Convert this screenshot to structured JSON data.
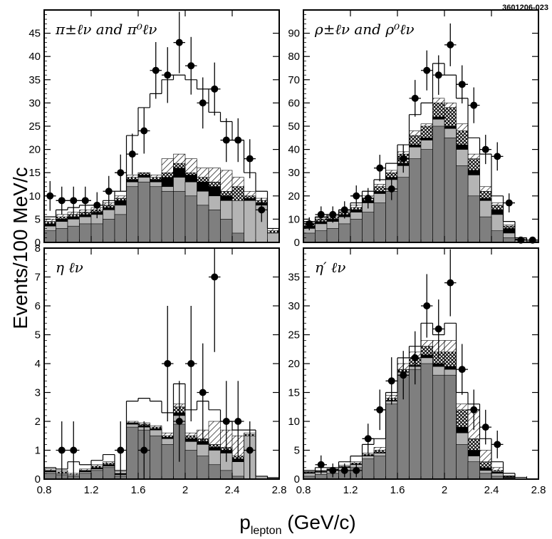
{
  "figure_id": "3601206-023",
  "y_axis_label": "Events/100 MeV/c",
  "x_axis_label_main": "p",
  "x_axis_label_sub": "lepton",
  "x_axis_label_unit": " (GeV/c)",
  "x_ticks": [
    "0.8",
    "1.2",
    "1.6",
    "2",
    "2.4",
    "2.8"
  ],
  "colors": {
    "data": "#000000",
    "dark_fill": "#7f7f7f",
    "light_fill": "#b4b4b4",
    "hatch": "#000000"
  },
  "chart_data": [
    {
      "type": "bar",
      "panel": "top-left",
      "title": "π±ℓν and π⁰ℓν",
      "xlabel": "p_lepton (GeV/c)",
      "ylabel": "Events/100 MeV/c",
      "xlim": [
        0.8,
        2.8
      ],
      "ylim": [
        0,
        50
      ],
      "y_ticks": [
        0,
        5,
        10,
        15,
        20,
        25,
        30,
        35,
        40,
        45
      ],
      "bins": [
        0.8,
        0.9,
        1.0,
        1.1,
        1.2,
        1.3,
        1.4,
        1.5,
        1.6,
        1.7,
        1.8,
        1.9,
        2.0,
        2.1,
        2.2,
        2.3,
        2.4,
        2.5,
        2.6,
        2.7,
        2.8
      ],
      "dark_gray": [
        2.5,
        3,
        3.5,
        4,
        4,
        5,
        6,
        12,
        13,
        12,
        11,
        11,
        10,
        8,
        7,
        5,
        2,
        0,
        0,
        0
      ],
      "light_gray": [
        3.5,
        4.5,
        5,
        5.5,
        6,
        7,
        8,
        13,
        14,
        13,
        12,
        14,
        13,
        11,
        10,
        9,
        9,
        9,
        8,
        2
      ],
      "black": [
        4,
        5,
        5.5,
        6,
        6.5,
        7.5,
        9,
        13.5,
        14.5,
        13.5,
        14,
        16,
        14.5,
        13,
        12,
        10,
        8,
        9.5,
        8.5,
        2
      ],
      "crosshatch": [
        4.5,
        5.5,
        6,
        6.5,
        7,
        8,
        9.5,
        14,
        15,
        14,
        15,
        17,
        15,
        14,
        13,
        11,
        12,
        10,
        9,
        2.5
      ],
      "hatched": [
        5,
        6,
        6.5,
        7,
        7.5,
        8.5,
        10,
        14.5,
        15,
        14.5,
        18,
        19,
        18,
        16,
        16,
        15.5,
        14,
        11,
        9.5,
        3
      ],
      "total": [
        5.5,
        7,
        7.5,
        8,
        8,
        9,
        11,
        23,
        29,
        32,
        35,
        36,
        35,
        33,
        28,
        26,
        22,
        15,
        11,
        3
      ],
      "data_x": [
        0.85,
        0.95,
        1.05,
        1.15,
        1.25,
        1.35,
        1.45,
        1.55,
        1.65,
        1.75,
        1.85,
        1.95,
        2.05,
        2.15,
        2.25,
        2.35,
        2.45,
        2.55,
        2.65
      ],
      "data_y": [
        10,
        9,
        9,
        9,
        8,
        11,
        15,
        19,
        24,
        37,
        36,
        43,
        38,
        30,
        33,
        22,
        22,
        18,
        7
      ],
      "data_err": [
        3.2,
        3,
        3,
        3,
        2.8,
        3.3,
        3.9,
        4.4,
        4.9,
        6.1,
        6,
        6.6,
        6.2,
        5.5,
        5.7,
        4.7,
        4.7,
        4.2,
        2.6
      ]
    },
    {
      "type": "bar",
      "panel": "top-right",
      "title": "ρ±ℓν and ρ⁰ℓν",
      "xlabel": "p_lepton (GeV/c)",
      "ylabel": "Events/100 MeV/c",
      "xlim": [
        0.8,
        2.8
      ],
      "ylim": [
        0,
        100
      ],
      "y_ticks": [
        0,
        10,
        20,
        30,
        40,
        50,
        60,
        70,
        80,
        90
      ],
      "bins": [
        0.8,
        0.9,
        1.0,
        1.1,
        1.2,
        1.3,
        1.4,
        1.5,
        1.6,
        1.7,
        1.8,
        1.9,
        2.0,
        2.1,
        2.2,
        2.3,
        2.4,
        2.5,
        2.6,
        2.7,
        2.8
      ],
      "dark_gray": [
        4,
        5,
        6,
        8,
        10,
        13,
        17,
        22,
        28,
        36,
        40,
        50,
        45,
        33,
        20,
        11,
        5,
        2,
        0,
        0
      ],
      "light_gray": [
        6,
        8,
        9,
        11,
        13,
        17,
        21,
        27,
        33,
        41,
        44,
        53,
        49,
        40,
        29,
        18,
        12,
        4,
        1,
        0
      ],
      "black": [
        7,
        9,
        10,
        12,
        14,
        18,
        22,
        28,
        34,
        42,
        45,
        54,
        50,
        42,
        31,
        19,
        14,
        6,
        1,
        0
      ],
      "crosshatch": [
        8,
        10,
        11,
        13,
        15,
        19,
        24,
        30,
        38,
        46,
        50,
        60,
        58,
        48,
        36,
        22,
        16,
        7,
        1.5,
        0
      ],
      "hatched": [
        8.5,
        10.5,
        11.5,
        13.5,
        16,
        20,
        25,
        31,
        39,
        48,
        51,
        62,
        60,
        51,
        38,
        24,
        17,
        7.5,
        1.5,
        0.5
      ],
      "total": [
        9,
        11,
        12,
        14,
        17,
        22,
        27,
        34,
        42,
        55,
        60,
        77,
        72,
        62,
        45,
        38,
        20,
        9,
        2,
        1
      ],
      "data_x": [
        0.85,
        0.95,
        1.05,
        1.15,
        1.25,
        1.35,
        1.45,
        1.55,
        1.65,
        1.75,
        1.85,
        1.95,
        2.05,
        2.15,
        2.25,
        2.35,
        2.45,
        2.55,
        2.65,
        2.75
      ],
      "data_y": [
        8,
        12,
        12,
        14,
        20,
        19,
        32,
        23,
        36,
        62,
        74,
        72,
        85,
        68,
        59,
        40,
        37,
        17,
        1,
        1
      ],
      "data_err": [
        2.8,
        3.5,
        3.5,
        3.7,
        4.5,
        4.4,
        5.7,
        4.8,
        6,
        7.9,
        8.6,
        8.5,
        9.2,
        8.2,
        7.7,
        6.3,
        6.1,
        4.1,
        1,
        1
      ]
    },
    {
      "type": "bar",
      "panel": "bottom-left",
      "title": "η ℓν",
      "xlabel": "p_lepton (GeV/c)",
      "ylabel": "Events/100 MeV/c",
      "xlim": [
        0.8,
        2.8
      ],
      "ylim": [
        0,
        8
      ],
      "y_ticks": [
        0,
        1,
        2,
        3,
        4,
        5,
        6,
        7,
        8
      ],
      "bins": [
        0.8,
        0.9,
        1.0,
        1.1,
        1.2,
        1.3,
        1.4,
        1.5,
        1.6,
        1.7,
        1.8,
        1.9,
        2.0,
        2.1,
        2.2,
        2.3,
        2.4,
        2.5,
        2.6,
        2.7,
        2.8
      ],
      "dark_gray": [
        0.2,
        0.15,
        0.1,
        0.2,
        0.3,
        0.4,
        0.1,
        1.8,
        1.7,
        1.5,
        1.2,
        1.9,
        1.0,
        0.8,
        0.5,
        0.3,
        0.1,
        0,
        0,
        0
      ],
      "light_gray": [
        0.25,
        0.2,
        0.15,
        0.25,
        0.35,
        0.45,
        0.15,
        1.9,
        1.8,
        1.7,
        1.4,
        2.2,
        1.3,
        1.2,
        1.0,
        0.9,
        0.6,
        1.5,
        0.1,
        0.05
      ],
      "black": [
        0.3,
        0.2,
        0.15,
        0.3,
        0.4,
        0.5,
        0.2,
        1.95,
        1.85,
        1.75,
        1.45,
        2.3,
        1.4,
        1.3,
        1.1,
        1.0,
        0.7,
        1.5,
        0.1,
        0.05
      ],
      "crosshatch": [
        0.3,
        0.25,
        0.15,
        0.3,
        0.45,
        0.55,
        0.2,
        1.95,
        1.9,
        1.8,
        1.5,
        2.5,
        1.5,
        1.4,
        1.2,
        1.1,
        0.8,
        1.55,
        0.1,
        0.05
      ],
      "hatched": [
        0.35,
        0.3,
        0.2,
        0.35,
        0.5,
        0.6,
        0.25,
        2.0,
        1.95,
        1.85,
        1.6,
        2.6,
        1.6,
        1.7,
        2.0,
        1.7,
        1.5,
        1.6,
        0.1,
        0.05
      ],
      "total": [
        0.4,
        0.35,
        0.6,
        0.5,
        0.65,
        0.85,
        0.3,
        2.7,
        2.8,
        2.7,
        2.3,
        3.3,
        2.4,
        2.7,
        2.4,
        2.0,
        1.7,
        1.7,
        0.1,
        0.05
      ],
      "data_x": [
        0.95,
        1.05,
        1.45,
        1.65,
        1.85,
        1.95,
        2.05,
        2.15,
        2.25,
        2.35,
        2.45,
        2.55
      ],
      "data_y": [
        1,
        1,
        1,
        1,
        4,
        2,
        4,
        3,
        7,
        2,
        2,
        1
      ],
      "data_err": [
        1,
        1,
        1,
        1,
        2,
        1.4,
        2,
        1.7,
        2.6,
        1.4,
        1.4,
        1
      ]
    },
    {
      "type": "bar",
      "panel": "bottom-right",
      "title": "η′ ℓν",
      "xlabel": "p_lepton (GeV/c)",
      "ylabel": "Events/100 MeV/c",
      "xlim": [
        0.8,
        2.8
      ],
      "ylim": [
        0,
        40
      ],
      "y_ticks": [
        0,
        5,
        10,
        15,
        20,
        25,
        30,
        35
      ],
      "bins": [
        0.8,
        0.9,
        1.0,
        1.1,
        1.2,
        1.3,
        1.4,
        1.5,
        1.6,
        1.7,
        1.8,
        1.9,
        2.0,
        2.1,
        2.2,
        2.3,
        2.4,
        2.5,
        2.6,
        2.7,
        2.8
      ],
      "dark_gray": [
        0.5,
        0.8,
        1,
        1.5,
        2,
        3.5,
        4,
        13,
        18,
        19,
        20,
        18,
        18,
        6,
        3,
        1,
        0.5,
        0.2,
        0,
        0
      ],
      "light_gray": [
        1,
        1.2,
        1.5,
        2,
        2.5,
        4,
        4.5,
        13.5,
        18.5,
        19.5,
        21,
        19.5,
        19,
        8,
        4,
        1.5,
        1,
        0.3,
        0,
        0
      ],
      "black": [
        1.1,
        1.3,
        1.6,
        2.1,
        2.6,
        4.1,
        4.6,
        13.6,
        18.6,
        19.7,
        21.5,
        20,
        19.5,
        9,
        5,
        2,
        1.2,
        0.4,
        0,
        0
      ],
      "crosshatch": [
        1.2,
        1.4,
        1.7,
        2.2,
        2.8,
        4.3,
        5,
        14,
        19,
        21,
        23,
        22,
        22,
        12,
        7,
        3,
        1.5,
        0.5,
        0,
        0
      ],
      "hatched": [
        1.3,
        1.5,
        1.8,
        2.4,
        3,
        4.5,
        5.5,
        14.5,
        20,
        22,
        24,
        24,
        24,
        13,
        12,
        5,
        2,
        0.6,
        0,
        0
      ],
      "total": [
        1.5,
        2,
        2,
        3,
        4,
        6,
        7,
        15,
        21,
        23,
        27,
        25,
        27,
        15,
        13,
        7,
        3,
        1,
        0.3,
        0
      ],
      "data_x": [
        0.95,
        1.05,
        1.15,
        1.25,
        1.35,
        1.45,
        1.55,
        1.65,
        1.75,
        1.85,
        1.95,
        2.05,
        2.15,
        2.25,
        2.35,
        2.45
      ],
      "data_y": [
        2.5,
        1.5,
        1.5,
        1.5,
        7,
        12,
        17,
        18,
        21,
        30,
        26,
        34,
        19,
        12,
        9,
        6
      ],
      "data_err": [
        1.6,
        1.2,
        1.2,
        1.2,
        2.6,
        3.5,
        4.1,
        4.2,
        4.6,
        5.5,
        5.1,
        5.8,
        4.4,
        3.5,
        3,
        2.4
      ]
    }
  ]
}
